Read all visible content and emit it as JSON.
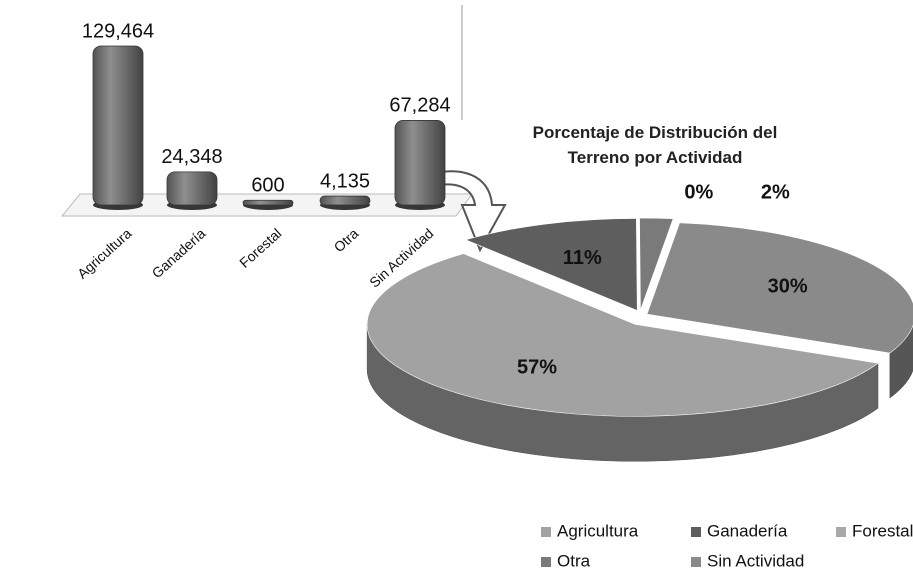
{
  "chart_data": [
    {
      "type": "bar",
      "categories": [
        "Agricultura",
        "Ganadería",
        "Forestal",
        "Otra",
        "Sin Actividad"
      ],
      "values": [
        129464,
        24348,
        600,
        4135,
        67284
      ],
      "value_labels": [
        "129,464",
        "24,348",
        "600",
        "4,135",
        "67,284"
      ],
      "color": "#6e6e6e"
    },
    {
      "type": "pie",
      "title": "Porcentaje de Distribución del Terreno por Actividad",
      "categories": [
        "Agricultura",
        "Ganadería",
        "Forestal",
        "Otra",
        "Sin Actividad"
      ],
      "values": [
        57,
        11,
        0,
        2,
        30
      ],
      "value_labels": [
        "57%",
        "11%",
        "0%",
        "2%",
        "30%"
      ],
      "colors": [
        "#a2a2a2",
        "#5e5e5e",
        "#a8a8a8",
        "#7a7a7a",
        "#8a8a8a"
      ],
      "legend": "bottom"
    }
  ]
}
